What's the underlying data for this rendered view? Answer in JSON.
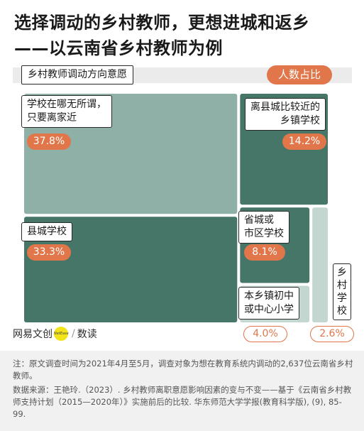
{
  "title": {
    "line1": "选择调动的乡村教师，更想进城和返乡",
    "line2": "——以云南省乡村教师为例"
  },
  "subtitle": "乡村教师调动方向意愿",
  "value_header": "人数占比",
  "chart_data": {
    "type": "treemap",
    "title": "乡村教师调动方向意愿",
    "value_label": "人数占比",
    "unit": "%",
    "items": [
      {
        "name": "学校在哪无所谓，只要离家近",
        "value": 37.8,
        "label": "37.8%"
      },
      {
        "name": "县城学校",
        "value": 33.3,
        "label": "33.3%"
      },
      {
        "name": "离县城比较近的乡镇学校",
        "value": 14.2,
        "label": "14.2%"
      },
      {
        "name": "省城或市区学校",
        "value": 8.1,
        "label": "8.1%"
      },
      {
        "name": "本乡镇初中或中心小学",
        "value": 4.0,
        "label": "4.0%"
      },
      {
        "name": "乡村学校",
        "value": 2.6,
        "label": "2.6%"
      }
    ],
    "colors": {
      "light": "#8fb0a6",
      "dark": "#467668",
      "pale": "#c4d6d0",
      "accent": "#e0764a"
    }
  },
  "labels": {
    "near_home": "学校在哪无所谓，\n只要离家近",
    "county": "县城学校",
    "near_county": "离县城比较近的\n乡镇学校",
    "city": "省城或\n市区学校",
    "local_town": "本乡镇初中\n或中心小学",
    "village": "乡\n村\n学\n校"
  },
  "logo": {
    "brand": "网易文创",
    "badge": "NetEase",
    "sub": "数读"
  },
  "notes": {
    "note": "注：原文调查时间为2021年4月至5月，调查对象为想在教育系统内调动的2,637位云南省乡村教师。",
    "source": "数据来源：王艳玲.（2023）. 乡村教师离职意愿影响因素的变与不变——基于《云南省乡村教师支持计划（2015—2020年）》实施前后的比较. 华东师范大学学报(教育科学版), (9), 85-99."
  }
}
